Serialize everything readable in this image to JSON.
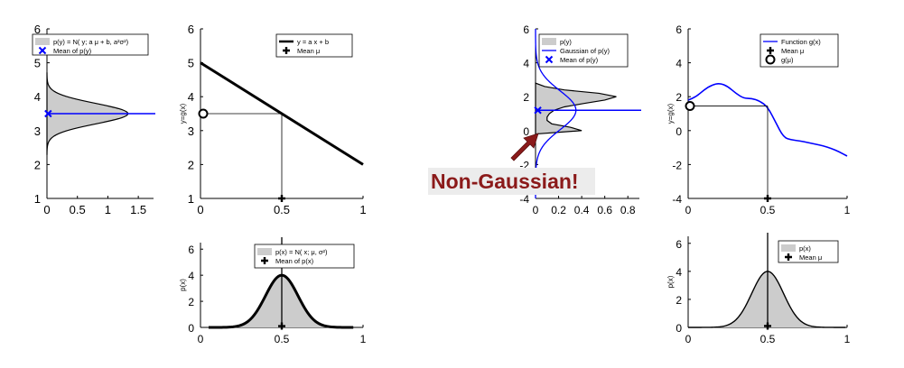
{
  "note": "Non-Gaussian!",
  "colors": {
    "line": "#000000",
    "blue": "#0000ff",
    "fill": "#cccccc",
    "arrow": "#8b1a1a"
  },
  "chart_data": [
    {
      "id": "left-py",
      "type": "area",
      "orientation": "horizontal",
      "title": "",
      "xlabel": "",
      "ylabel": "",
      "xlim": [
        0,
        1.75
      ],
      "ylim": [
        1,
        6
      ],
      "xticks": [
        "0",
        "0.5",
        "1",
        "1.5"
      ],
      "xtick_values": [
        0,
        0.5,
        1,
        1.5
      ],
      "yticks": [
        "1",
        "2",
        "3",
        "4",
        "5",
        "6"
      ],
      "ytick_values": [
        1,
        2,
        3,
        4,
        5,
        6
      ],
      "density": {
        "mean": 3.5,
        "sd": 0.3,
        "peak": 1.33
      },
      "mean_marker": {
        "x": 0.02,
        "y": 3.5
      },
      "legend": [
        "p(y) = N( y; a μ + b, a²σ²)",
        "Mean of p(y)"
      ]
    },
    {
      "id": "left-g",
      "type": "line",
      "title": "",
      "xlabel": "",
      "ylabel": "y=g(x)",
      "xlim": [
        0,
        1
      ],
      "ylim": [
        1,
        6
      ],
      "xticks": [
        "0",
        "0.5",
        "1"
      ],
      "xtick_values": [
        0,
        0.5,
        1
      ],
      "yticks": [
        "1",
        "2",
        "3",
        "4",
        "5",
        "6"
      ],
      "ytick_values": [
        1,
        2,
        3,
        4,
        5,
        6
      ],
      "series": [
        {
          "name": "y = a x + b",
          "x": [
            0,
            1
          ],
          "y": [
            5,
            2
          ]
        }
      ],
      "mean": {
        "x": 0.5,
        "y": 3.5
      },
      "legend": [
        "y = a x + b",
        "Mean μ"
      ]
    },
    {
      "id": "left-px",
      "type": "area",
      "title": "",
      "xlabel": "",
      "ylabel": "p(x)",
      "xlim": [
        0,
        1
      ],
      "ylim": [
        0,
        6.5
      ],
      "xticks": [
        "0",
        "0.5",
        "1"
      ],
      "xtick_values": [
        0,
        0.5,
        1
      ],
      "yticks": [
        "0",
        "2",
        "4",
        "6"
      ],
      "ytick_values": [
        0,
        2,
        4,
        6
      ],
      "density": {
        "mean": 0.5,
        "sd": 0.1,
        "peak": 4.0
      },
      "mean_marker": {
        "x": 0.5,
        "y": 0.1
      },
      "legend": [
        "p(x) = N( x; μ, σ²)",
        "Mean of p(x)"
      ]
    },
    {
      "id": "right-py",
      "type": "area",
      "orientation": "horizontal",
      "title": "",
      "xlabel": "",
      "ylabel": "",
      "xlim": [
        0,
        0.9
      ],
      "ylim": [
        -4,
        6
      ],
      "xticks": [
        "0",
        "0.2",
        "0.4",
        "0.6",
        "0.8"
      ],
      "xtick_values": [
        0,
        0.2,
        0.4,
        0.6,
        0.8
      ],
      "yticks": [
        "-4",
        "-2",
        "0",
        "2",
        "4",
        "6"
      ],
      "ytick_values": [
        -4,
        -2,
        0,
        2,
        4,
        6
      ],
      "y": [
        -0.2,
        0.0,
        0.2,
        0.4,
        0.6,
        0.8,
        1.0,
        1.2,
        1.4,
        1.6,
        1.8,
        2.0,
        2.2,
        2.4,
        2.6,
        2.8
      ],
      "density_x": [
        0.0,
        0.4,
        0.3,
        0.14,
        0.1,
        0.1,
        0.12,
        0.16,
        0.25,
        0.42,
        0.6,
        0.7,
        0.55,
        0.25,
        0.08,
        0.0
      ],
      "gaussian": {
        "mean": 1.2,
        "sd": 1.15,
        "peak": 0.35
      },
      "mean_marker": {
        "x": 0.02,
        "y": 1.2
      },
      "legend": [
        "p(y)",
        "Gaussian of p(y)",
        "Mean of p(y)"
      ]
    },
    {
      "id": "right-g",
      "type": "line",
      "title": "",
      "xlabel": "",
      "ylabel": "y=g(x)",
      "xlim": [
        0,
        1
      ],
      "ylim": [
        -4,
        6
      ],
      "xticks": [
        "0",
        "0.5",
        "1"
      ],
      "xtick_values": [
        0,
        0.5,
        1
      ],
      "yticks": [
        "-4",
        "-2",
        "0",
        "2",
        "4",
        "6"
      ],
      "ytick_values": [
        -4,
        -2,
        0,
        2,
        4,
        6
      ],
      "series": [
        {
          "name": "Function g(x)",
          "x": [
            0,
            0.05,
            0.1,
            0.15,
            0.2,
            0.25,
            0.3,
            0.35,
            0.4,
            0.45,
            0.5,
            0.55,
            0.6,
            0.65,
            0.7,
            0.75,
            0.8,
            0.85,
            0.9,
            0.95,
            1.0
          ],
          "y": [
            1.8,
            2.0,
            2.4,
            2.7,
            2.8,
            2.6,
            2.2,
            1.9,
            1.9,
            1.75,
            1.4,
            0.5,
            -0.4,
            -0.55,
            -0.6,
            -0.7,
            -0.8,
            -0.9,
            -1.05,
            -1.25,
            -1.5
          ]
        }
      ],
      "mean": {
        "x": 0.5,
        "y": 1.45
      },
      "legend": [
        "Function g(x)",
        "Mean μ",
        "g(μ)"
      ]
    },
    {
      "id": "right-px",
      "type": "area",
      "title": "",
      "xlabel": "",
      "ylabel": "p(x)",
      "xlim": [
        0,
        1
      ],
      "ylim": [
        0,
        6.5
      ],
      "xticks": [
        "0",
        "0.5",
        "1"
      ],
      "xtick_values": [
        0,
        0.5,
        1
      ],
      "yticks": [
        "0",
        "2",
        "4",
        "6"
      ],
      "ytick_values": [
        0,
        2,
        4,
        6
      ],
      "density": {
        "mean": 0.5,
        "sd": 0.1,
        "peak": 4.0
      },
      "mean_marker": {
        "x": 0.5,
        "y": 0.1
      },
      "legend": [
        "p(x)",
        "Mean μ"
      ]
    }
  ]
}
